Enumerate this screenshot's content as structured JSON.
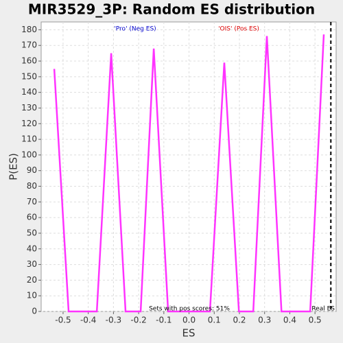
{
  "chart_data": {
    "type": "line",
    "title": "MIR3529_3P: Random ES distribution",
    "xlabel": "ES",
    "ylabel": "P(ES)",
    "x": [
      -0.535,
      -0.478,
      -0.366,
      -0.309,
      -0.252,
      -0.192,
      -0.14,
      -0.083,
      0.083,
      0.14,
      0.198,
      0.255,
      0.309,
      0.367,
      0.481,
      0.535
    ],
    "values": [
      155,
      0,
      0,
      165,
      0,
      0,
      168,
      0,
      0,
      159,
      0,
      0,
      176,
      0,
      0,
      177
    ],
    "color": "#ff33ff",
    "xlim": [
      -0.587,
      0.584
    ],
    "ylim": [
      0,
      185
    ],
    "xticks": [
      -0.5,
      -0.4,
      -0.3,
      -0.2,
      -0.1,
      {
        "value": 0,
        "label": "0.0"
      },
      0.1,
      0.2,
      0.3,
      0.4,
      0.5
    ],
    "yticks": [
      0,
      10,
      20,
      30,
      40,
      50,
      60,
      70,
      80,
      90,
      100,
      110,
      120,
      130,
      140,
      150,
      160,
      170,
      180
    ],
    "grid": true,
    "neg_label": "'Pro' (Neg ES)",
    "neg_color": "#0000cc",
    "pos_label": "'OIS' (Pos ES)",
    "pos_color": "#dd0000",
    "pos_scores_note": "Sets with pos scores: 51%",
    "real_es_label": "Real ES",
    "real_es": 0.563
  }
}
